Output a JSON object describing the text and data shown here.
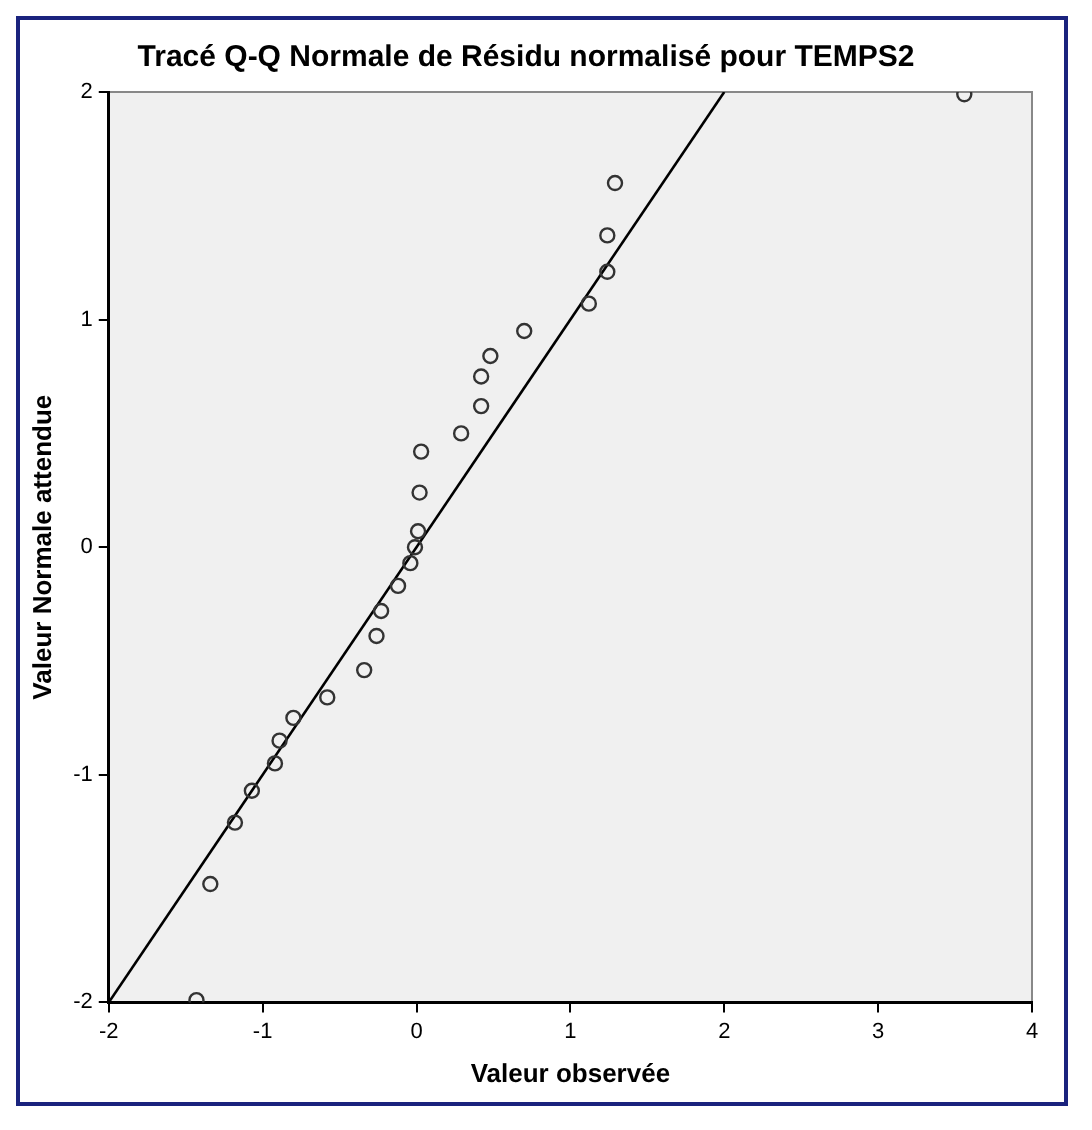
{
  "chart_data": {
    "type": "scatter",
    "title": "Tracé Q-Q Normale de Résidu normalisé pour TEMPS2",
    "xlabel": "Valeur observée",
    "ylabel": "Valeur Normale attendue",
    "grid": false,
    "legend": false,
    "xlim": [
      -2,
      4
    ],
    "xticks": [
      -2,
      -1,
      0,
      1,
      2,
      3,
      4
    ],
    "ylim": [
      -2,
      2
    ],
    "yticks": [
      -2,
      -1,
      0,
      1,
      2
    ],
    "series": [
      {
        "marker": "circle",
        "color": "#333333",
        "x": [
          -1.43,
          -1.34,
          -1.18,
          -1.07,
          -0.92,
          -0.89,
          -0.8,
          -0.58,
          -0.34,
          -0.26,
          -0.23,
          -0.12,
          -0.04,
          -0.01,
          0.01,
          0.02,
          0.03,
          0.29,
          0.42,
          0.42,
          0.48,
          0.7,
          1.12,
          1.24,
          1.24,
          1.29,
          3.56
        ],
        "values": [
          -1.99,
          -1.48,
          -1.21,
          -1.07,
          -0.95,
          -0.85,
          -0.75,
          -0.66,
          -0.54,
          -0.39,
          -0.28,
          -0.17,
          -0.07,
          0,
          0.07,
          0.24,
          0.42,
          0.5,
          0.62,
          0.75,
          0.84,
          0.95,
          1.07,
          1.21,
          1.37,
          1.6,
          1.99
        ]
      },
      {
        "type": "line",
        "marker": "none",
        "color": "#000000",
        "x": [
          -2,
          2
        ],
        "values": [
          -2,
          2
        ]
      }
    ]
  }
}
